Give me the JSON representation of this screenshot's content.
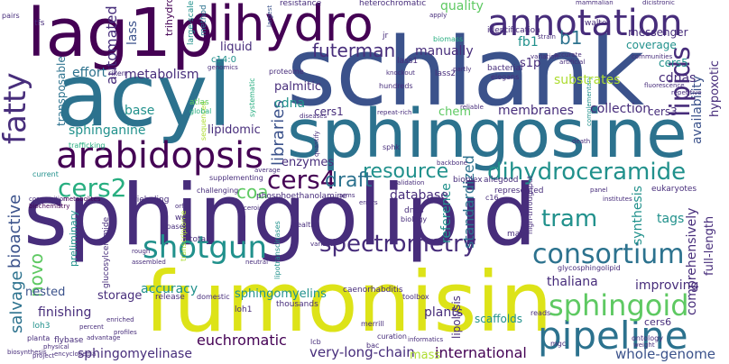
{
  "colors": {
    "purple_dark": "#440154",
    "purple": "#472d7b",
    "indigo": "#3b528b",
    "blue": "#2c728e",
    "teal": "#21918c",
    "sea": "#28ae80",
    "green": "#5ec962",
    "lime": "#addc30",
    "yellow": "#dde318"
  },
  "words": {
    "schlank": "schlank",
    "sphingolipid": "sphingolipid",
    "fumonisin": "fumonisin",
    "sphingosine": "sphingosine",
    "lag1p": "lag1p",
    "acyl": "acyl",
    "dihydro": "dihydro",
    "annotation": "annotation",
    "fatty": "fatty",
    "arabidopsis": "arabidopsis",
    "lipids": "lipids",
    "pipeline": "pipeline",
    "sphingoid": "sphingoid",
    "shotgun": "shotgun",
    "cers4": "cers4",
    "cers2": "cers2",
    "consortium": "consortium",
    "dihydroceramide": "dihydroceramide",
    "spectrometry": "spectrometry",
    "resource": "resource",
    "futerman": "futerman",
    "bioactive": "bioactive",
    "libraries": "libraries",
    "draft": "draft",
    "tram": "tram",
    "coa": "coa",
    "salvage": "salvage",
    "novo": "novo",
    "metabolism": "metabolism",
    "automated": "automated",
    "sphinganine": "sphinganine",
    "b1": "b1",
    "fb1": "fb1",
    "quality": "quality",
    "manually": "manually",
    "effort": "effort",
    "base": "base",
    "international": "international",
    "very_long_chain": "very-long-chain",
    "euchromatic": "euchromatic",
    "sphingomyelinase": "sphingomyelinase",
    "finishing": "finishing",
    "mass": "mass",
    "whole_genome": "whole-genome",
    "cers6": "cers6",
    "thaliana": "thaliana",
    "plants": "plants",
    "improving": "improving",
    "sphingomyelins": "sphingomyelins",
    "accuracy": "accuracy",
    "storage": "storage",
    "nested": "nested",
    "database": "database",
    "reference": "reference",
    "standardized": "standardized",
    "collection": "collection",
    "membranes": "membranes",
    "chem": "chem",
    "enzymes": "enzymes",
    "lipidomic": "lipidomic",
    "palmitic": "palmitic",
    "cdna": "cdna",
    "cdnas": "cdnas",
    "cers1": "cers1",
    "cers3": "cers3",
    "cers5": "cers5",
    "synthesis": "synthesis",
    "tags": "tags",
    "comprehensively": "comprehensively",
    "full_length": "full-length",
    "availability": "availability",
    "hypoxotic": "hypoxotic",
    "substrates": "substrates",
    "coverage": "coverage",
    "messenger": "messenger",
    "s1p": "s1p",
    "liquid": "liquid",
    "transposable": "transposable",
    "lass": "lass",
    "lass1": "lass1",
    "lass2": "lass2",
    "c14_0": "c14:0",
    "trihydroxy": "trihydroxy",
    "large_scale": "large-scale",
    "method": "method",
    "resistance": "resistance",
    "heterochromatic": "heterochromatic",
    "mammalian": "mammalian",
    "dicistronic": "dicistronic",
    "walter": "walter",
    "identification": "identification",
    "strain": "strain",
    "biomass": "biomass",
    "apply": "apply",
    "largest": "largest",
    "jr": "jr",
    "pairs": "pairs",
    "tfs": "tfs",
    "riken": "riken",
    "proteome": "proteome",
    "atlas": "atlas",
    "global": "global",
    "trafficking": "trafficking",
    "sequenced": "sequenced",
    "preliminary": "preliminary",
    "current": "current",
    "composition": "composition",
    "metabolites": "metabolites",
    "biochemistry": "biochemistry",
    "glucosylceramide": "glucosylceramide",
    "supplementing": "supplementing",
    "challenging": "challenging",
    "riebeling": "riebeling",
    "phosphoethanolamine": "phosphoethanolamine",
    "wgs": "wgs",
    "lipase": "lipase",
    "total": "total",
    "transcriptome": "transcriptome",
    "assembled": "assembled",
    "rough": "rough",
    "neutral": "neutral",
    "health": "health",
    "variants": "variants",
    "lipotranscinases": "lipotranscinases",
    "dnas": "dnas",
    "biology": "biology",
    "map": "map",
    "c16": "c16",
    "arms": "arms",
    "errors": "errors",
    "validation": "validation",
    "bioplex": "bioplex",
    "allegood": "allegood",
    "represented": "represented",
    "high_throughput": "high-throughput",
    "eukaryotes": "eukaryotes",
    "panel": "panel",
    "institutes": "institutes",
    "glycosphingolipid": "glycosphingolipid",
    "loh1": "loh1",
    "loh3": "loh3",
    "release": "release",
    "domestic": "domestic",
    "thousands": "thousands",
    "toolbox": "toolbox",
    "caenorhabditis": "caenorhabditis",
    "scaffolds": "scaffolds",
    "reads": "reads",
    "lipolysis": "lipolysis",
    "curation": "curation",
    "informatics": "informatics",
    "bac": "bac",
    "mgc": "mgc",
    "ontology": "ontology",
    "weight": "weight",
    "lcb": "lcb",
    "merrill": "merrill",
    "flybase": "flybase",
    "advantage": "advantage",
    "profiles": "profiles",
    "planta": "planta",
    "physical": "physical",
    "encyclopedia": "encyclopedia",
    "project": "project",
    "biosynthesis": "biosynthesis",
    "percent": "percent",
    "enriched": "enriched",
    "repetitive": "repetitive",
    "fluorescence": "fluorescence",
    "communities": "communities",
    "elegans": "elegans",
    "bacterial": "bacterial",
    "partly": "partly",
    "hundreds": "hundreds",
    "knockout": "knockout",
    "repeat_rich": "repeat-rich",
    "reliable": "reliable",
    "complementary": "complementary",
    "death": "death",
    "variation": "variation",
    "accurate": "accurate",
    "artificial": "artificial",
    "sphk": "sphk",
    "quantify": "quantify",
    "diseases": "diseases",
    "systematic": "systematic",
    "backbone": "backbone",
    "average": "average",
    "ceroid": "ceroid",
    "orf": "orf",
    "genomics": "genomics"
  }
}
